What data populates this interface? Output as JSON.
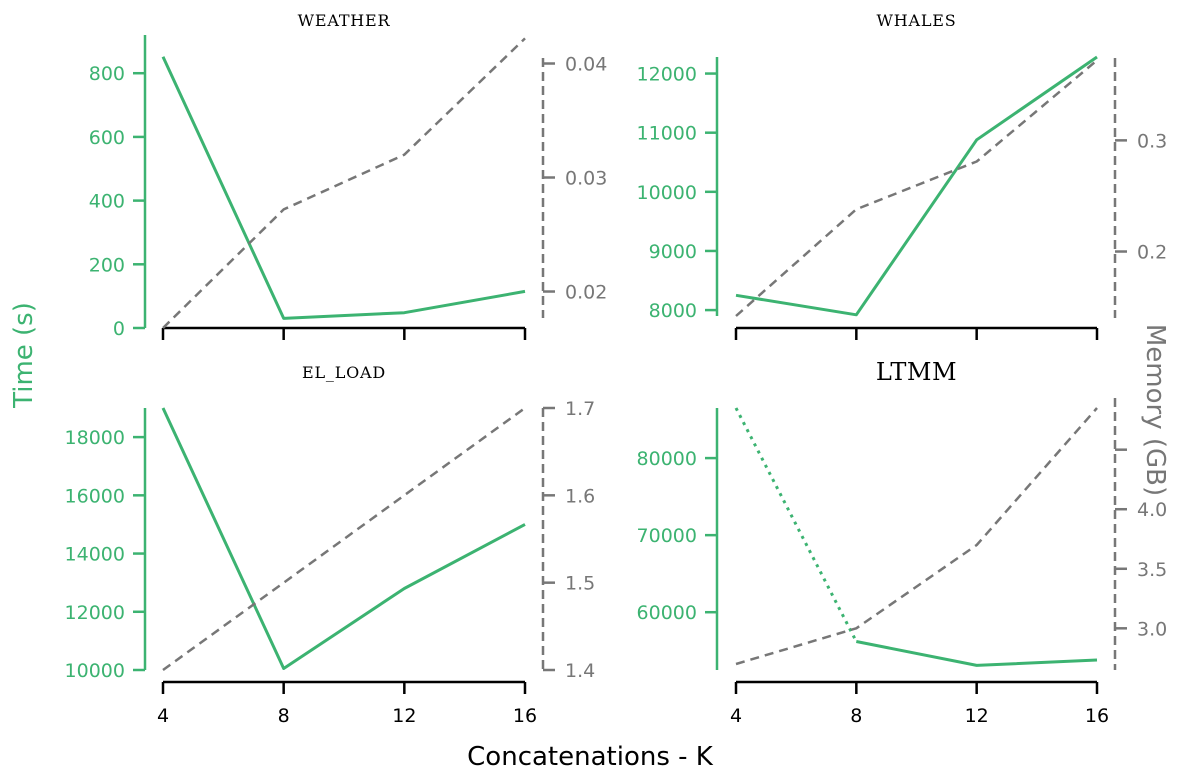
{
  "figure": {
    "xlabel": "Concatenations - K",
    "ylabel_left": "Time (s)",
    "ylabel_right": "Memory (GB)",
    "colors": {
      "time": "#3cb371",
      "memory": "#777777",
      "axis": "#000000"
    }
  },
  "chart_data": [
    {
      "type": "line",
      "title": "WEATHER",
      "x": [
        4,
        8,
        12,
        16
      ],
      "xticks": [
        4,
        8,
        12,
        16
      ],
      "show_xticklabels": false,
      "series": [
        {
          "axis": "left",
          "style": "solid",
          "values": [
            852,
            30,
            48,
            115
          ]
        },
        {
          "axis": "right",
          "style": "dashed",
          "values": [
            0.0168,
            0.0272,
            0.032,
            0.0422
          ]
        }
      ],
      "ylim_left": [
        0,
        920
      ],
      "yticks_left": [
        0,
        200,
        400,
        600,
        800
      ],
      "yticklabels_left": [
        "0",
        "200",
        "400",
        "600",
        "800"
      ],
      "ylim_right": [
        0.0168,
        0.0425
      ],
      "yticks_right": [
        0.02,
        0.03,
        0.04
      ],
      "yticklabels_right": [
        "0.02",
        "0.03",
        "0.04"
      ]
    },
    {
      "type": "line",
      "title": "WHALES",
      "x": [
        4,
        8,
        12,
        16
      ],
      "xticks": [
        4,
        8,
        12,
        16
      ],
      "show_xticklabels": false,
      "series": [
        {
          "axis": "left",
          "style": "solid",
          "values": [
            8250,
            7920,
            10880,
            12280
          ]
        },
        {
          "axis": "right",
          "style": "dashed",
          "values": [
            0.142,
            0.238,
            0.281,
            0.372
          ]
        }
      ],
      "ylim_left": [
        7900,
        12280
      ],
      "yticks_left": [
        8000,
        9000,
        10000,
        11000,
        12000
      ],
      "yticklabels_left": [
        "8000",
        "9000",
        "10000",
        "11000",
        "12000"
      ],
      "ylim_right": [
        0.142,
        0.375
      ],
      "yticks_right": [
        0.2,
        0.3
      ],
      "yticklabels_right": [
        "0.2",
        "0.3"
      ]
    },
    {
      "type": "line",
      "title": "EL_LOAD",
      "x": [
        4,
        8,
        12,
        16
      ],
      "xticks": [
        4,
        8,
        12,
        16
      ],
      "show_xticklabels": true,
      "xticklabels": [
        "4",
        "8",
        "12",
        "16"
      ],
      "series": [
        {
          "axis": "left",
          "style": "solid",
          "values": [
            19000,
            10050,
            12800,
            15000
          ]
        },
        {
          "axis": "right",
          "style": "dashed",
          "values": [
            1.4,
            1.5,
            1.6,
            1.7
          ]
        }
      ],
      "ylim_left": [
        10000,
        19000
      ],
      "yticks_left": [
        10000,
        12000,
        14000,
        16000,
        18000
      ],
      "yticklabels_left": [
        "10000",
        "12000",
        "14000",
        "16000",
        "18000"
      ],
      "ylim_right": [
        1.4,
        1.7
      ],
      "yticks_right": [
        1.4,
        1.5,
        1.6,
        1.7
      ],
      "yticklabels_right": [
        "1.4",
        "1.5",
        "1.6",
        "1.7"
      ]
    },
    {
      "type": "line",
      "title": "LTMM",
      "x": [
        4,
        8,
        12,
        16
      ],
      "xticks": [
        4,
        8,
        12,
        16
      ],
      "show_xticklabels": true,
      "xticklabels": [
        "4",
        "8",
        "12",
        "16"
      ],
      "series": [
        {
          "axis": "left",
          "style": "dotted",
          "x": [
            4,
            8
          ],
          "values": [
            86500,
            56200
          ]
        },
        {
          "axis": "left",
          "style": "solid",
          "x": [
            8,
            12,
            16
          ],
          "values": [
            56200,
            53100,
            53800
          ]
        },
        {
          "axis": "right",
          "style": "dashed",
          "values": [
            2.7,
            3.0,
            3.7,
            4.85
          ]
        }
      ],
      "ylim_left": [
        52500,
        86500
      ],
      "yticks_left": [
        60000,
        70000,
        80000
      ],
      "yticklabels_left": [
        "60000",
        "70000",
        "80000"
      ],
      "ylim_right": [
        2.65,
        4.85
      ],
      "yticks_right": [
        3.0,
        3.5,
        4.0,
        4.5
      ],
      "yticklabels_right": [
        "3.0",
        "3.5",
        "4.0",
        ""
      ]
    }
  ]
}
